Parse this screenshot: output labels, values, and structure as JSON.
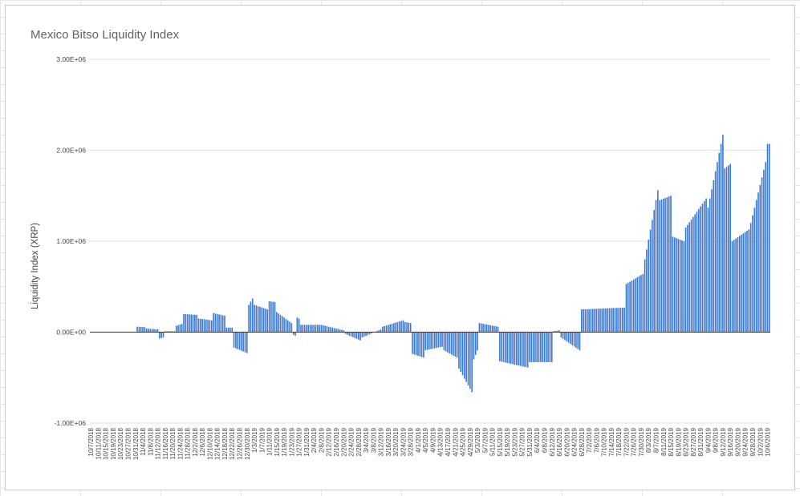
{
  "chart_data": {
    "type": "bar",
    "title": "Mexico Bitso Liquidity Index",
    "xlabel": "",
    "ylabel": "Liquidity Index (XRP)",
    "ylim": [
      -1000000,
      3000000
    ],
    "y_ticks": [
      -1000000,
      0,
      1000000,
      2000000,
      3000000
    ],
    "y_tick_labels": [
      "-1.00E+06",
      "0.00E+00",
      "1.00E+06",
      "2.00E+06",
      "3.00E+06"
    ],
    "grid": true,
    "legend": "none",
    "color": "#3b78d8",
    "x_tick_labels": [
      "10/7/2018",
      "10/11/2018",
      "10/15/2018",
      "10/19/2018",
      "10/23/2018",
      "10/27/2018",
      "10/31/2018",
      "11/4/2018",
      "11/8/2018",
      "11/12/2018",
      "11/16/2018",
      "11/20/2018",
      "11/24/2018",
      "11/28/2018",
      "12/2/2018",
      "12/6/2018",
      "12/10/2018",
      "12/14/2018",
      "12/18/2018",
      "12/22/2018",
      "12/26/2018",
      "12/30/2018",
      "1/3/2019",
      "1/7/2019",
      "1/11/2019",
      "1/15/2019",
      "1/19/2019",
      "1/23/2019",
      "1/27/2019",
      "1/31/2019",
      "2/4/2019",
      "2/8/2019",
      "2/12/2019",
      "2/16/2019",
      "2/20/2019",
      "2/24/2019",
      "2/28/2019",
      "3/4/2019",
      "3/8/2019",
      "3/12/2019",
      "3/16/2019",
      "3/20/2019",
      "3/24/2019",
      "3/28/2019",
      "4/1/2019",
      "4/5/2019",
      "4/9/2019",
      "4/13/2019",
      "4/17/2019",
      "4/21/2019",
      "4/25/2019",
      "4/29/2019",
      "5/3/2019",
      "5/7/2019",
      "5/11/2019",
      "5/15/2019",
      "5/19/2019",
      "5/23/2019",
      "5/27/2019",
      "5/31/2019",
      "6/4/2019",
      "6/8/2019",
      "6/12/2019",
      "6/16/2019",
      "6/20/2019",
      "6/24/2019",
      "6/28/2019",
      "7/2/2019",
      "7/6/2019",
      "7/10/2019",
      "7/14/2019",
      "7/18/2019",
      "7/22/2019",
      "7/26/2019",
      "7/30/2019",
      "8/3/2019",
      "8/7/2019",
      "8/11/2019",
      "8/15/2019",
      "8/19/2019",
      "8/23/2019",
      "8/27/2019",
      "8/31/2019",
      "9/4/2019",
      "9/8/2019",
      "9/12/2019",
      "9/16/2019",
      "9/20/2019",
      "9/24/2019",
      "9/28/2019",
      "10/2/2019",
      "10/6/2019"
    ],
    "segments": [
      {
        "x": [
          "10/7/2018",
          "10/31/2018"
        ],
        "y": [
          0,
          0
        ]
      },
      {
        "x": [
          "11/1/2018",
          "11/5/2018"
        ],
        "y": [
          60000,
          55000
        ]
      },
      {
        "x": [
          "11/6/2018",
          "11/12/2018"
        ],
        "y": [
          40000,
          30000
        ]
      },
      {
        "x": [
          "11/13/2018",
          "11/15/2018"
        ],
        "y": [
          -70000,
          -60000
        ]
      },
      {
        "x": [
          "11/16/2018",
          "11/21/2018"
        ],
        "y": [
          10000,
          10000
        ]
      },
      {
        "x": [
          "11/22/2018",
          "11/25/2018"
        ],
        "y": [
          70000,
          90000
        ]
      },
      {
        "x": [
          "11/26/2018",
          "12/3/2018"
        ],
        "y": [
          200000,
          190000
        ]
      },
      {
        "x": [
          "12/4/2018",
          "12/11/2018"
        ],
        "y": [
          150000,
          130000
        ]
      },
      {
        "x": [
          "12/12/2018",
          "12/18/2018"
        ],
        "y": [
          210000,
          180000
        ]
      },
      {
        "x": [
          "12/19/2018",
          "12/22/2018"
        ],
        "y": [
          50000,
          50000
        ]
      },
      {
        "x": [
          "12/23/2018",
          "12/30/2018"
        ],
        "y": [
          -170000,
          -230000
        ]
      },
      {
        "x": [
          "12/31/2018",
          "1/2/2019"
        ],
        "y": [
          300000,
          370000
        ]
      },
      {
        "x": [
          "1/3/2019",
          "1/10/2019"
        ],
        "y": [
          300000,
          250000
        ]
      },
      {
        "x": [
          "1/11/2019",
          "1/14/2019"
        ],
        "y": [
          340000,
          330000
        ]
      },
      {
        "x": [
          "1/15/2019",
          "1/23/2019"
        ],
        "y": [
          220000,
          100000
        ]
      },
      {
        "x": [
          "1/24/2019",
          "1/25/2019"
        ],
        "y": [
          -30000,
          -40000
        ]
      },
      {
        "x": [
          "1/26/2019",
          "1/27/2019"
        ],
        "y": [
          160000,
          150000
        ]
      },
      {
        "x": [
          "1/28/2019",
          "2/7/2019"
        ],
        "y": [
          80000,
          80000
        ]
      },
      {
        "x": [
          "2/8/2019",
          "2/20/2019"
        ],
        "y": [
          80000,
          20000
        ]
      },
      {
        "x": [
          "2/21/2019",
          "3/1/2019"
        ],
        "y": [
          -20000,
          -90000
        ]
      },
      {
        "x": [
          "3/2/2019",
          "3/12/2019"
        ],
        "y": [
          -60000,
          30000
        ]
      },
      {
        "x": [
          "3/13/2019",
          "3/24/2019"
        ],
        "y": [
          60000,
          130000
        ]
      },
      {
        "x": [
          "3/25/2019",
          "3/28/2019"
        ],
        "y": [
          110000,
          100000
        ]
      },
      {
        "x": [
          "3/29/2019",
          "4/4/2019"
        ],
        "y": [
          -240000,
          -280000
        ]
      },
      {
        "x": [
          "4/5/2019",
          "4/14/2019"
        ],
        "y": [
          -200000,
          -160000
        ]
      },
      {
        "x": [
          "4/15/2019",
          "4/22/2019"
        ],
        "y": [
          -200000,
          -280000
        ]
      },
      {
        "x": [
          "4/23/2019",
          "4/30/2019"
        ],
        "y": [
          -400000,
          -660000
        ]
      },
      {
        "x": [
          "5/1/2019",
          "5/3/2019"
        ],
        "y": [
          -300000,
          -200000
        ]
      },
      {
        "x": [
          "5/4/2019",
          "5/14/2019"
        ],
        "y": [
          100000,
          60000
        ]
      },
      {
        "x": [
          "5/15/2019",
          "5/30/2019"
        ],
        "y": [
          -320000,
          -390000
        ]
      },
      {
        "x": [
          "5/31/2019",
          "6/12/2019"
        ],
        "y": [
          -330000,
          -330000
        ]
      },
      {
        "x": [
          "6/13/2019",
          "6/16/2019"
        ],
        "y": [
          10000,
          20000
        ]
      },
      {
        "x": [
          "6/17/2019",
          "6/27/2019"
        ],
        "y": [
          -60000,
          -200000
        ]
      },
      {
        "x": [
          "6/28/2019",
          "7/21/2019"
        ],
        "y": [
          250000,
          270000
        ]
      },
      {
        "x": [
          "7/22/2019",
          "7/31/2019"
        ],
        "y": [
          530000,
          640000
        ]
      },
      {
        "x": [
          "8/1/2019",
          "8/8/2019"
        ],
        "y": [
          800000,
          1560000
        ]
      },
      {
        "x": [
          "8/9/2019",
          "8/15/2019"
        ],
        "y": [
          1450000,
          1500000
        ]
      },
      {
        "x": [
          "8/16/2019",
          "8/22/2019"
        ],
        "y": [
          1050000,
          1000000
        ]
      },
      {
        "x": [
          "8/23/2019",
          "9/3/2019"
        ],
        "y": [
          1150000,
          1470000
        ]
      },
      {
        "x": [
          "9/4/2019",
          "9/12/2019"
        ],
        "y": [
          1370000,
          2170000
        ]
      },
      {
        "x": [
          "9/13/2019",
          "9/16/2019"
        ],
        "y": [
          1800000,
          1850000
        ]
      },
      {
        "x": [
          "9/17/2019",
          "9/26/2019"
        ],
        "y": [
          1000000,
          1130000
        ]
      },
      {
        "x": [
          "9/27/2019",
          "10/5/2019"
        ],
        "y": [
          1200000,
          1870000
        ]
      },
      {
        "x": [
          "10/6/2019",
          "10/7/2019"
        ],
        "y": [
          2070000,
          2070000
        ]
      }
    ]
  }
}
